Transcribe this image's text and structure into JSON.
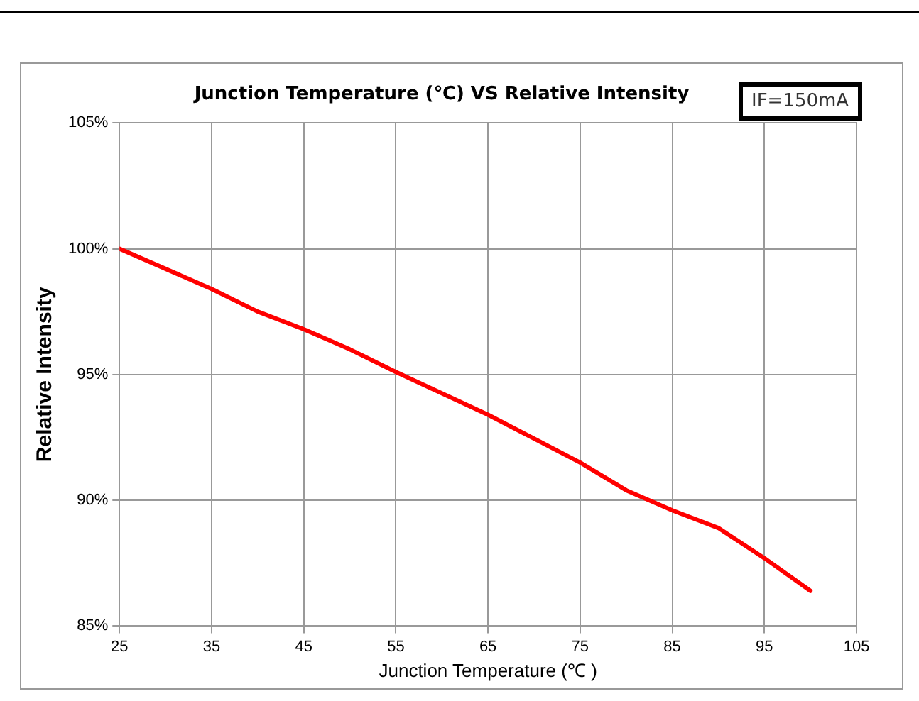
{
  "chart_data": {
    "type": "line",
    "title": "Junction Temperature (℃) VS Relative Intensity",
    "xlabel": "Junction Temperature (℃ )",
    "ylabel": "Relative Intensity",
    "annotations": [
      "IF=150mA"
    ],
    "x": [
      25,
      35,
      40,
      45,
      50,
      55,
      65,
      75,
      80,
      85,
      90,
      95,
      100
    ],
    "series": [
      {
        "color": "#ff0000",
        "values": [
          100,
          98.4,
          97.5,
          96.8,
          96.0,
          95.1,
          93.4,
          91.5,
          90.4,
          89.6,
          88.9,
          87.7,
          86.4
        ]
      }
    ],
    "xlim": [
      25,
      105
    ],
    "xticks": [
      25,
      35,
      45,
      55,
      65,
      75,
      85,
      95,
      105
    ],
    "ylim": [
      85,
      105
    ],
    "yticks": [
      {
        "value": 85,
        "label": "85%"
      },
      {
        "value": 90,
        "label": "90%"
      },
      {
        "value": 95,
        "label": "95%"
      },
      {
        "value": 100,
        "label": "100%"
      },
      {
        "value": 105,
        "label": "105%"
      }
    ],
    "grid": true,
    "legend": false,
    "marker": "none",
    "line_style": "solid"
  }
}
